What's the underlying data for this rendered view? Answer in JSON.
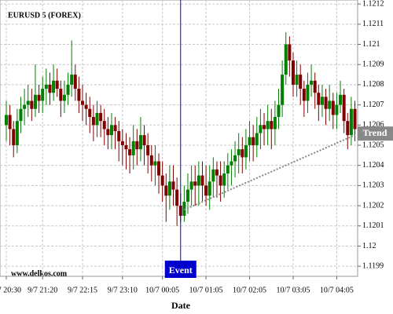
{
  "chart_data": {
    "type": "candlestick",
    "title": "EURUSD 5 (FOREX)",
    "watermark": "www.delkos.com",
    "x_label": "Date",
    "categories": [
      "9/7 20:30",
      null,
      null,
      null,
      null,
      null,
      null,
      null,
      null,
      null,
      "9/7 21:20",
      null,
      null,
      null,
      null,
      null,
      null,
      null,
      null,
      null,
      null,
      "9/7 22:15",
      null,
      null,
      null,
      null,
      null,
      null,
      null,
      null,
      null,
      null,
      "9/7 23:10",
      null,
      null,
      null,
      null,
      null,
      null,
      null,
      null,
      null,
      null,
      "10/7 00:05",
      null,
      null,
      null,
      null,
      null,
      null,
      null,
      null,
      null,
      null,
      null,
      "10/7 01:05",
      null,
      null,
      null,
      null,
      null,
      null,
      null,
      null,
      null,
      null,
      null,
      "10/7 02:05",
      null,
      null,
      null,
      null,
      null,
      null,
      null,
      null,
      null,
      null,
      null,
      "10/7 03:05",
      null,
      null,
      null,
      null,
      null,
      null,
      null,
      null,
      null,
      null,
      null,
      "10/7 04:05",
      null,
      null,
      null,
      null,
      null
    ],
    "series": [
      {
        "up_color": "#008000",
        "down_color": "#800000",
        "open": [
          1.1206,
          1.12065,
          1.12058,
          1.1205,
          1.12062,
          1.12068,
          1.1207,
          1.12072,
          1.12068,
          1.12075,
          1.12072,
          1.12078,
          1.1208,
          1.12076,
          1.12082,
          1.12078,
          1.12072,
          1.12075,
          1.1208,
          1.12085,
          1.12078,
          1.12072,
          1.1207,
          1.12068,
          1.12064,
          1.1206,
          1.12066,
          1.12062,
          1.12058,
          1.12055,
          1.1206,
          1.12057,
          1.12052,
          1.1205,
          1.12048,
          1.12045,
          1.12052,
          1.12048,
          1.12055,
          1.1205,
          1.12045,
          1.1204,
          1.12042,
          1.12035,
          1.1203,
          1.12025,
          1.12032,
          1.12028,
          1.1202,
          1.12015,
          1.12022,
          1.12028,
          1.12032,
          1.1203,
          1.12035,
          1.1203,
          1.12025,
          1.12032,
          1.12038,
          1.12035,
          1.1203,
          1.12036,
          1.1204,
          1.12042,
          1.12045,
          1.12048,
          1.12044,
          1.1205,
          1.12054,
          1.1205,
          1.12056,
          1.1206,
          1.12058,
          1.12062,
          1.12058,
          1.12064,
          1.1207,
          1.12085,
          1.121,
          1.12092,
          1.1208,
          1.12085,
          1.12078,
          1.12072,
          1.1208,
          1.12082,
          1.12076,
          1.1207,
          1.12074,
          1.12068,
          1.12072,
          1.12065,
          1.1207,
          1.12075,
          1.12062,
          1.12055,
          1.12068
        ],
        "high": [
          1.12072,
          1.1207,
          1.12062,
          1.12068,
          1.12074,
          1.12078,
          1.1208,
          1.12078,
          1.1209,
          1.1208,
          1.12084,
          1.12088,
          1.12086,
          1.1209,
          1.12088,
          1.12082,
          1.12082,
          1.12086,
          1.12102,
          1.1209,
          1.12084,
          1.1208,
          1.12076,
          1.12074,
          1.1207,
          1.12072,
          1.1207,
          1.12068,
          1.12064,
          1.12066,
          1.12064,
          1.12062,
          1.12058,
          1.12056,
          1.12054,
          1.1206,
          1.12058,
          1.12064,
          1.1206,
          1.12056,
          1.1205,
          1.1205,
          1.12046,
          1.12042,
          1.12036,
          1.1204,
          1.1204,
          1.12034,
          1.12026,
          1.1203,
          1.12036,
          1.1204,
          1.1204,
          1.12042,
          1.12042,
          1.1204,
          1.1204,
          1.12044,
          1.12042,
          1.12042,
          1.12042,
          1.12046,
          1.12048,
          1.12052,
          1.12056,
          1.12054,
          1.12058,
          1.12062,
          1.1206,
          1.12064,
          1.12068,
          1.12066,
          1.1207,
          1.12068,
          1.12072,
          1.12078,
          1.12092,
          1.12106,
          1.12104,
          1.12096,
          1.12092,
          1.1209,
          1.12082,
          1.12086,
          1.1209,
          1.12086,
          1.1208,
          1.1208,
          1.12078,
          1.1208,
          1.12076,
          1.12076,
          1.12082,
          1.12078,
          1.12066,
          1.12074,
          1.12072
        ],
        "low": [
          1.12052,
          1.1205,
          1.12044,
          1.12046,
          1.12056,
          1.1206,
          1.12064,
          1.12062,
          1.12064,
          1.12066,
          1.12066,
          1.1207,
          1.1207,
          1.12072,
          1.12074,
          1.12064,
          1.12066,
          1.1207,
          1.12074,
          1.12072,
          1.12066,
          1.12062,
          1.1206,
          1.12056,
          1.12052,
          1.12054,
          1.12054,
          1.1205,
          1.12048,
          1.12048,
          1.12048,
          1.12042,
          1.1204,
          1.12038,
          1.12036,
          1.12038,
          1.1204,
          1.12042,
          1.1204,
          1.12036,
          1.12032,
          1.1203,
          1.12026,
          1.12022,
          1.12012,
          1.12018,
          1.1202,
          1.1201,
          1.12012,
          1.12012,
          1.12016,
          1.1202,
          1.1202,
          1.1202,
          1.12022,
          1.1202,
          1.12018,
          1.12024,
          1.12024,
          1.12022,
          1.12024,
          1.12028,
          1.1203,
          1.12034,
          1.12036,
          1.12036,
          1.12038,
          1.12042,
          1.12042,
          1.12044,
          1.12048,
          1.1205,
          1.1205,
          1.12048,
          1.1205,
          1.12058,
          1.12064,
          1.1208,
          1.12084,
          1.12074,
          1.12074,
          1.1207,
          1.12064,
          1.12066,
          1.12074,
          1.12068,
          1.12062,
          1.12064,
          1.1206,
          1.12062,
          1.12058,
          1.12058,
          1.12066,
          1.12056,
          1.12048,
          1.1205,
          1.12052
        ],
        "close": [
          1.12065,
          1.12058,
          1.1205,
          1.12062,
          1.12068,
          1.1207,
          1.12072,
          1.12068,
          1.12075,
          1.12072,
          1.12078,
          1.1208,
          1.12076,
          1.12082,
          1.12078,
          1.12072,
          1.12075,
          1.1208,
          1.12085,
          1.12078,
          1.12072,
          1.1207,
          1.12068,
          1.12064,
          1.1206,
          1.12066,
          1.12062,
          1.12058,
          1.12055,
          1.1206,
          1.12057,
          1.12052,
          1.1205,
          1.12048,
          1.12045,
          1.12052,
          1.12048,
          1.12055,
          1.1205,
          1.12045,
          1.1204,
          1.12042,
          1.12035,
          1.1203,
          1.12025,
          1.12032,
          1.12028,
          1.1202,
          1.12015,
          1.12022,
          1.12028,
          1.12032,
          1.1203,
          1.12035,
          1.1203,
          1.12025,
          1.12032,
          1.12038,
          1.12035,
          1.1203,
          1.12036,
          1.1204,
          1.12042,
          1.12045,
          1.12048,
          1.12044,
          1.1205,
          1.12054,
          1.1205,
          1.12056,
          1.1206,
          1.12058,
          1.12062,
          1.12058,
          1.12064,
          1.1207,
          1.12085,
          1.121,
          1.12092,
          1.1208,
          1.12085,
          1.12078,
          1.12072,
          1.1208,
          1.12082,
          1.12076,
          1.1207,
          1.12074,
          1.12068,
          1.12072,
          1.12065,
          1.1207,
          1.12075,
          1.12062,
          1.12055,
          1.12068,
          1.12058
        ]
      }
    ],
    "ylim": [
      1.11985,
      1.12122
    ],
    "yticks": [
      1.1199,
      1.12,
      1.1201,
      1.1202,
      1.1203,
      1.1204,
      1.1205,
      1.1206,
      1.1207,
      1.1208,
      1.1209,
      1.121,
      1.1211,
      1.1212
    ],
    "grid": true,
    "event": {
      "label": "Event",
      "index": 48,
      "color": "#0000cc"
    },
    "trend": {
      "label": "Trend",
      "from": {
        "index": 49,
        "value": 1.12018
      },
      "to": {
        "index": 96,
        "value": 1.12055
      },
      "color": "#888888"
    }
  }
}
